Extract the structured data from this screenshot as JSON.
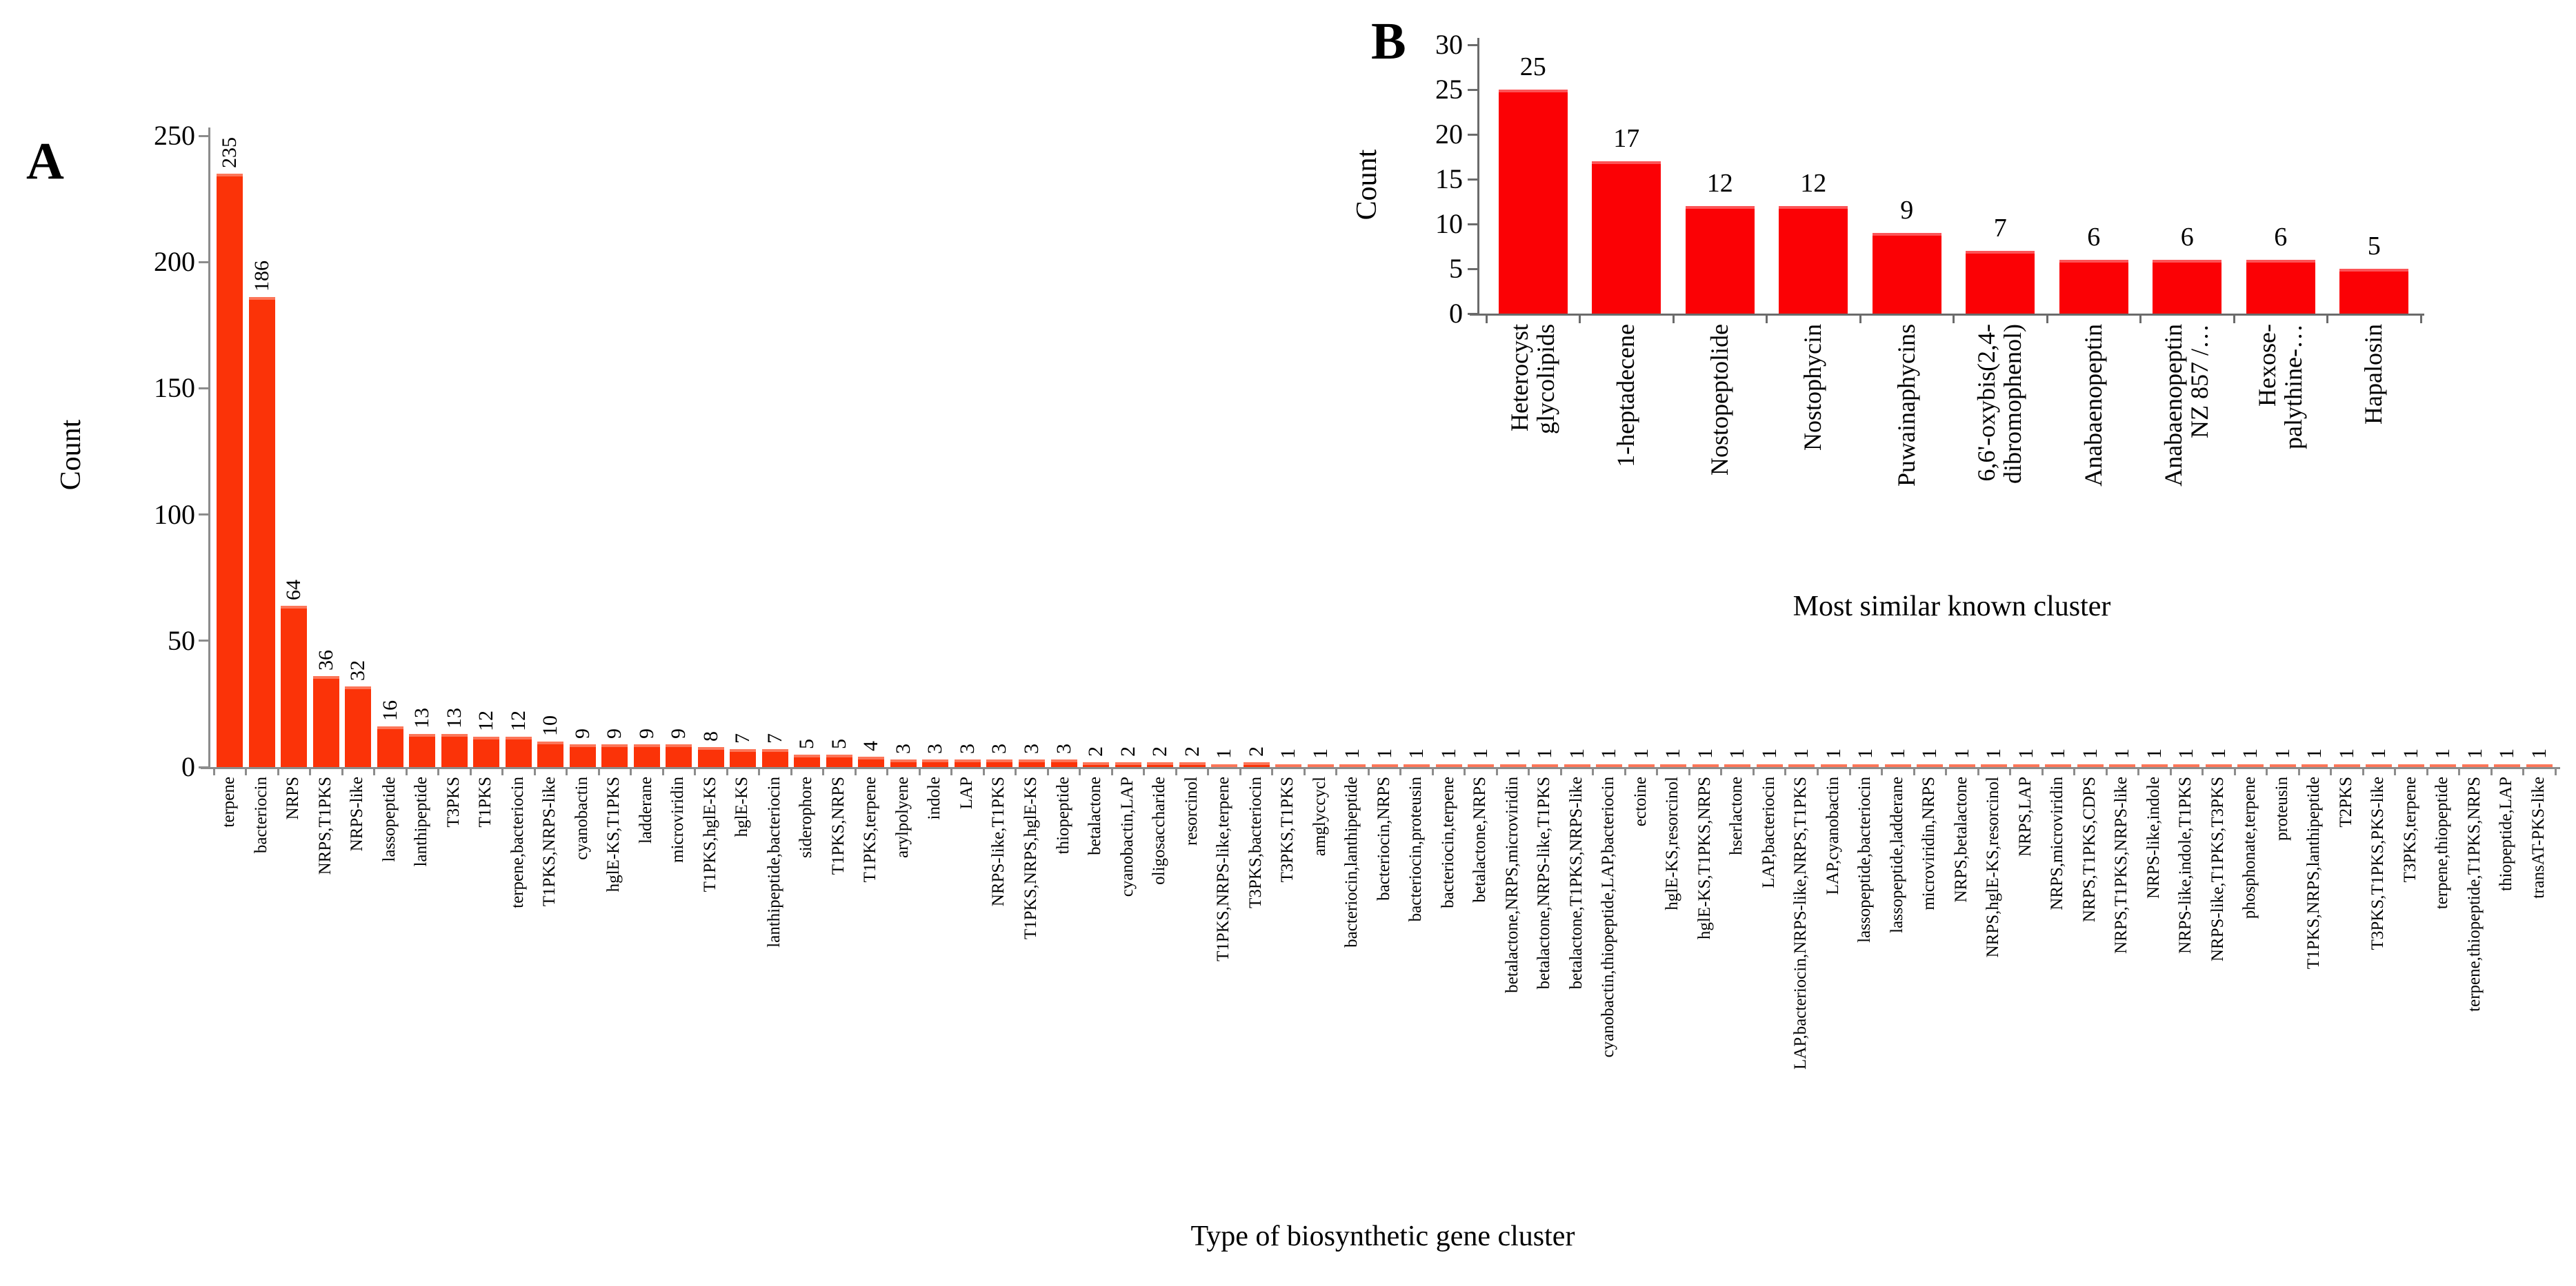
{
  "panels": {
    "a": "A",
    "b": "B"
  },
  "chart_data": [
    {
      "id": "A",
      "type": "bar",
      "title": "",
      "xlabel": "Type of biosynthetic gene cluster",
      "ylabel": "Count",
      "ylim": [
        0,
        250
      ],
      "yticks": [
        0,
        50,
        100,
        150,
        200,
        250
      ],
      "grid": false,
      "legend": "none",
      "bar_color": "#fb3308",
      "value_labels_rotated": true,
      "categories": [
        "terpene",
        "bacteriocin",
        "NRPS",
        "NRPS,T1PKS",
        "NRPS-like",
        "lassopeptide",
        "lanthipeptide",
        "T3PKS",
        "T1PKS",
        "terpene,bacteriocin",
        "T1PKS,NRPS-like",
        "cyanobactin",
        "hglE-KS,T1PKS",
        "ladderane",
        "microviridin",
        "T1PKS,hglE-KS",
        "hglE-KS",
        "lanthipeptide,bacteriocin",
        "siderophore",
        "T1PKS,NRPS",
        "T1PKS,terpene",
        "arylpolyene",
        "indole",
        "LAP",
        "NRPS-like,T1PKS",
        "T1PKS,NRPS,hglE-KS",
        "thiopeptide",
        "betalactone",
        "cyanobactin,LAP",
        "oligosaccharide",
        "resorcinol",
        "T1PKS,NRPS-like,terpene",
        "T3PKS,bacteriocin",
        "T3PKS,T1PKS",
        "amglyccycl",
        "bacteriocin,lanthipeptide",
        "bacteriocin,NRPS",
        "bacteriocin,proteusin",
        "bacteriocin,terpene",
        "betalactone,NRPS",
        "betalactone,NRPS,microviridin",
        "betalactone,NRPS-like,T1PKS",
        "betalactone,T1PKS,NRPS-like",
        "cyanobactin,thiopeptide,LAP,bacteriocin",
        "ectoine",
        "hglE-KS,resorcinol",
        "hglE-KS,T1PKS,NRPS",
        "hserlactone",
        "LAP,bacteriocin",
        "LAP,bacteriocin,NRPS-like,NRPS,T1PKS",
        "LAP,cyanobactin",
        "lassopeptide,bacteriocin",
        "lassopeptide,ladderane",
        "microviridin,NRPS",
        "NRPS,betalactone",
        "NRPS,hglE-KS,resorcinol",
        "NRPS,LAP",
        "NRPS,microviridin",
        "NRPS,T1PKS,CDPS",
        "NRPS,T1PKS,NRPS-like",
        "NRPS-like,indole",
        "NRPS-like,indole,T1PKS",
        "NRPS-like,T1PKS,T3PKS",
        "phosphonate,terpene",
        "proteusin",
        "T1PKS,NRPS,lanthipeptide",
        "T2PKS",
        "T3PKS,T1PKS,PKS-like",
        "T3PKS,terpene",
        "terpene,thiopeptide",
        "terpene,thiopeptide,T1PKS,NRPS",
        "thiopeptide,LAP",
        "transAT-PKS-like"
      ],
      "values": [
        235,
        186,
        64,
        36,
        32,
        16,
        13,
        13,
        12,
        12,
        10,
        9,
        9,
        9,
        9,
        8,
        7,
        7,
        5,
        5,
        4,
        3,
        3,
        3,
        3,
        3,
        3,
        2,
        2,
        2,
        2,
        1,
        2,
        1,
        1,
        1,
        1,
        1,
        1,
        1,
        1,
        1,
        1,
        1,
        1,
        1,
        1,
        1,
        1,
        1,
        1,
        1,
        1,
        1,
        1,
        1,
        1,
        1,
        1,
        1,
        1,
        1,
        1,
        1,
        1,
        1,
        1,
        1,
        1,
        1,
        1,
        1,
        1
      ]
    },
    {
      "id": "B",
      "type": "bar",
      "title": "",
      "xlabel": "Most similar known cluster",
      "ylabel": "Count",
      "ylim": [
        0,
        30
      ],
      "yticks": [
        0,
        5,
        10,
        15,
        20,
        25,
        30
      ],
      "grid": false,
      "legend": "none",
      "bar_color": "#fb0105",
      "value_labels_rotated": false,
      "categories": [
        "Heterocyst\nglycolipids",
        "1-heptadecene",
        "Nostopeptolide",
        "Nostophycin",
        "Puwainaphycins",
        "6,6'-oxybis(2,4-\ndibromophenol)",
        "Anabaenopeptin",
        "Anabaenopeptin\nNZ 857 /…",
        "Hexose-\npalythine-…",
        "Hapalosin"
      ],
      "values": [
        25,
        17,
        12,
        12,
        9,
        7,
        6,
        6,
        6,
        5
      ]
    }
  ]
}
